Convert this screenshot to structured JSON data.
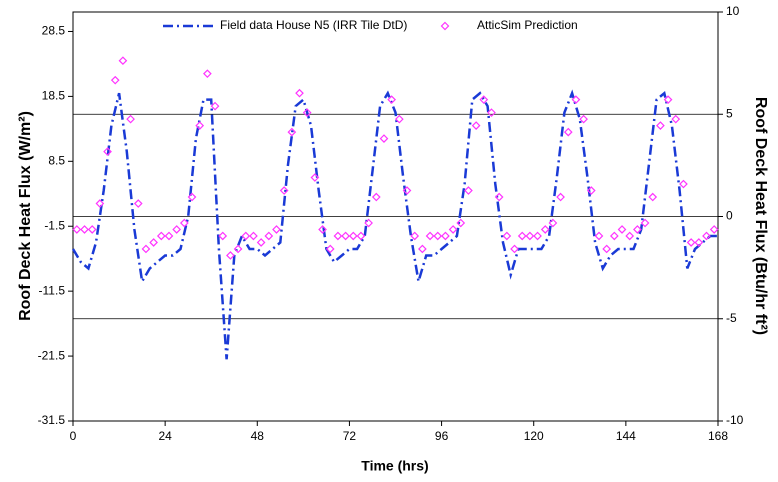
{
  "chart_data": {
    "type": "line-scatter",
    "xlabel": "Time (hrs)",
    "ylabel": "Roof Deck Heat Flux (W/m²)",
    "y2label": "Roof Deck Heat Flux (Btu/hr ft²)",
    "xlim": [
      0,
      168
    ],
    "xticks": [
      0,
      24,
      48,
      72,
      96,
      120,
      144,
      168
    ],
    "ylim": [
      -31.5,
      31.5
    ],
    "yticks": [
      -31.5,
      -21.5,
      -11.5,
      -1.5,
      8.5,
      18.5,
      28.5
    ],
    "y2lim": [
      -10,
      10
    ],
    "y2ticks": [
      -10,
      -5,
      0,
      5,
      10
    ],
    "grid": true,
    "series": [
      {
        "name": "Field data House N5 (IRR Tile DtD)",
        "kind": "line",
        "color": "#1a3ad6",
        "x": [
          0,
          2,
          4,
          6,
          8,
          10,
          12,
          14,
          16,
          18,
          20,
          22,
          24,
          26,
          28,
          30,
          32,
          34,
          36,
          38,
          40,
          42,
          44,
          46,
          48,
          50,
          52,
          54,
          56,
          58,
          60,
          62,
          64,
          66,
          68,
          70,
          72,
          74,
          76,
          78,
          80,
          82,
          84,
          86,
          88,
          90,
          92,
          94,
          96,
          98,
          100,
          102,
          104,
          106,
          108,
          110,
          112,
          114,
          116,
          118,
          120,
          122,
          124,
          126,
          128,
          130,
          132,
          134,
          136,
          138,
          140,
          142,
          144,
          146,
          148,
          150,
          152,
          154,
          156,
          158,
          160,
          162,
          164,
          166,
          168
        ],
        "values": [
          -5,
          -7,
          -8,
          -4,
          4,
          14,
          19,
          10,
          -2,
          -10,
          -8,
          -7,
          -6,
          -6,
          -5,
          0,
          12,
          18,
          18,
          -5,
          -22,
          -6,
          -3,
          -5,
          -5,
          -6,
          -5,
          -4,
          8,
          17,
          18,
          14,
          4,
          -5,
          -7,
          -6,
          -5,
          -5,
          -3,
          7,
          17,
          19,
          16,
          6,
          -3,
          -10,
          -6,
          -6,
          -5,
          -4,
          -3,
          5,
          18,
          19,
          17,
          5,
          -4,
          -9,
          -5,
          -5,
          -5,
          -5,
          -3,
          6,
          16,
          19,
          15,
          6,
          -4,
          -8,
          -6,
          -5,
          -5,
          -5,
          -2,
          8,
          18,
          19,
          14,
          4,
          -8,
          -5,
          -4,
          -3,
          -3
        ]
      },
      {
        "name": "AtticSim Prediction",
        "kind": "scatter",
        "color": "#ff33ff",
        "x": [
          1,
          3,
          5,
          7,
          9,
          11,
          13,
          15,
          17,
          19,
          21,
          23,
          25,
          27,
          29,
          31,
          33,
          35,
          37,
          39,
          41,
          43,
          45,
          47,
          49,
          51,
          53,
          55,
          57,
          59,
          61,
          63,
          65,
          67,
          69,
          71,
          73,
          75,
          77,
          79,
          81,
          83,
          85,
          87,
          89,
          91,
          93,
          95,
          97,
          99,
          101,
          103,
          105,
          107,
          109,
          111,
          113,
          115,
          117,
          119,
          121,
          123,
          125,
          127,
          129,
          131,
          133,
          135,
          137,
          139,
          141,
          143,
          145,
          147,
          149,
          151,
          153,
          155,
          157,
          159,
          161,
          163,
          165,
          167
        ],
        "values": [
          -2,
          -2,
          -2,
          2,
          10,
          21,
          24,
          15,
          2,
          -5,
          -4,
          -3,
          -3,
          -2,
          -1,
          3,
          14,
          22,
          17,
          -3,
          -6,
          -5,
          -3,
          -3,
          -4,
          -3,
          -2,
          4,
          13,
          19,
          16,
          6,
          -2,
          -5,
          -3,
          -3,
          -3,
          -3,
          -1,
          3,
          12,
          18,
          15,
          4,
          -3,
          -5,
          -3,
          -3,
          -3,
          -2,
          -1,
          4,
          14,
          18,
          16,
          3,
          -3,
          -5,
          -3,
          -3,
          -3,
          -2,
          -1,
          3,
          13,
          18,
          15,
          4,
          -3,
          -5,
          -3,
          -2,
          -3,
          -2,
          -1,
          3,
          14,
          18,
          15,
          5,
          -4,
          -4,
          -3,
          -2
        ]
      }
    ]
  }
}
